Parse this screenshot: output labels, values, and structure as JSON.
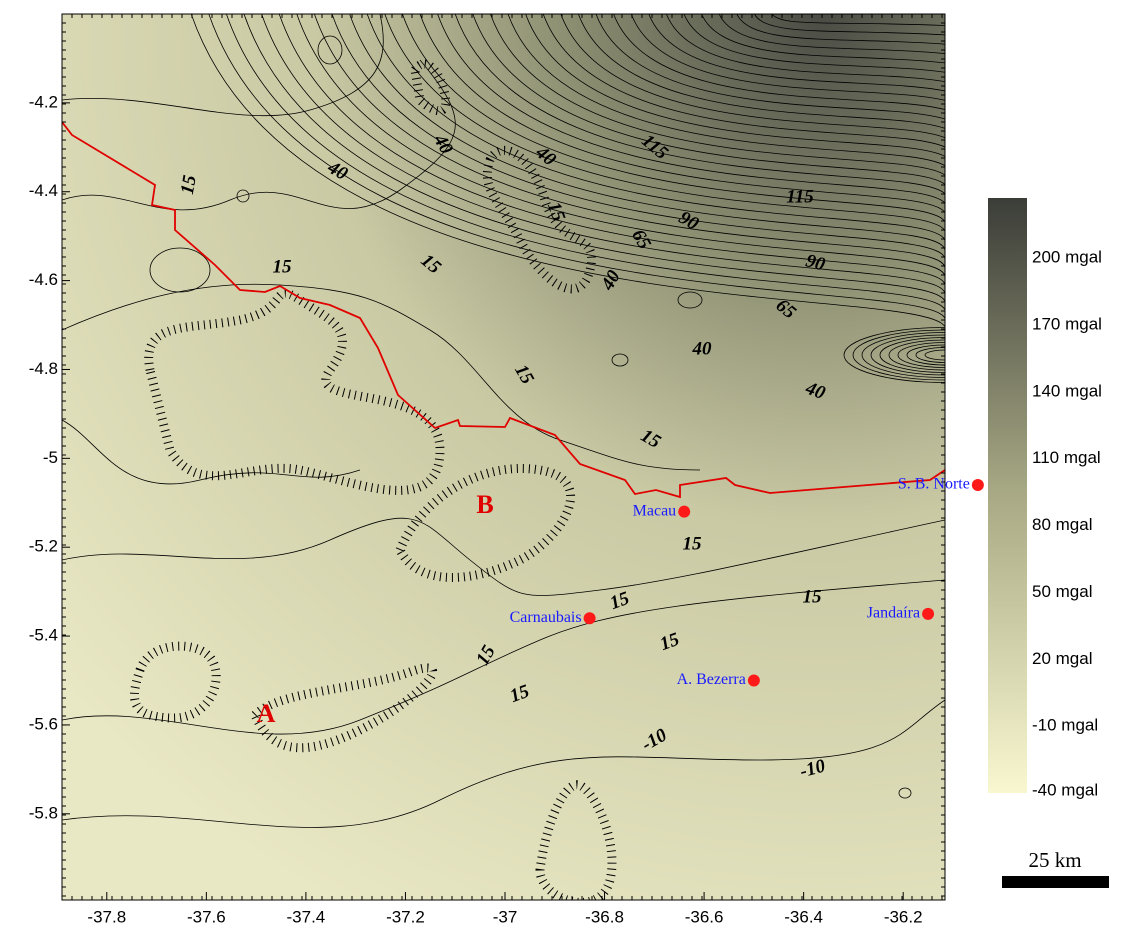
{
  "chart_data": {
    "type": "contour-map",
    "xlim": [
      -37.89,
      -36.116
    ],
    "ylim": [
      -5.994,
      -4.0
    ],
    "xticks": [
      -37.8,
      -37.6,
      -37.4,
      -37.2,
      -37.0,
      -36.8,
      -36.6,
      -36.4,
      -36.2
    ],
    "yticks": [
      -4.2,
      -4.4,
      -4.6,
      -4.8,
      -5.0,
      -5.2,
      -5.4,
      -5.6,
      -5.8
    ],
    "contour_labels": [
      15,
      40,
      40,
      40,
      15,
      115,
      115,
      90,
      90,
      65,
      65,
      40,
      40,
      40,
      15,
      15,
      15,
      15,
      15,
      15,
      15,
      15,
      15,
      15,
      -10,
      -10
    ],
    "towns": [
      {
        "name": "Macau",
        "lon": -36.64,
        "lat": -5.12
      },
      {
        "name": "Carnaubais",
        "lon": -36.83,
        "lat": -5.36
      },
      {
        "name": "Jandaíra",
        "lon": -36.15,
        "lat": -5.35
      },
      {
        "name": "A. Bezerra",
        "lon": -36.5,
        "lat": -5.5
      },
      {
        "name": "S. B. Norte",
        "lon": -36.05,
        "lat": -5.06
      }
    ],
    "markers": [
      {
        "label": "A",
        "lon": -37.48,
        "lat": -5.58
      },
      {
        "label": "B",
        "lon": -37.04,
        "lat": -5.11
      }
    ],
    "colorbar": {
      "clim": [
        -40,
        227
      ],
      "colors": [
        "#f8f7d0",
        "#a9aa85",
        "#3b3d38"
      ],
      "ticks": [
        {
          "value": 200,
          "label": "200 mgal"
        },
        {
          "value": 170,
          "label": "170 mgal"
        },
        {
          "value": 140,
          "label": "140 mgal"
        },
        {
          "value": 110,
          "label": "110 mgal"
        },
        {
          "value": 80,
          "label": "80 mgal"
        },
        {
          "value": 50,
          "label": "50 mgal"
        },
        {
          "value": 20,
          "label": "20 mgal"
        },
        {
          "value": -10,
          "label": "-10 mgal"
        },
        {
          "value": -40,
          "label": "-40 mgal"
        }
      ]
    },
    "scale_bar": "25 km"
  }
}
